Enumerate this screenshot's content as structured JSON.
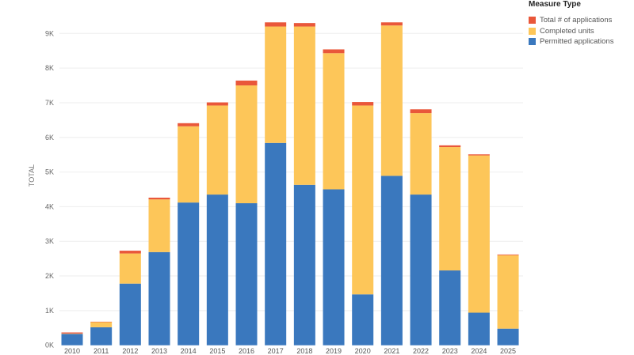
{
  "chart_data": {
    "type": "bar",
    "stacked": true,
    "title": "",
    "xlabel": "",
    "ylabel": "TOTAL",
    "ylim": [
      0,
      9000
    ],
    "yticks": [
      0,
      1000,
      2000,
      3000,
      4000,
      5000,
      6000,
      7000,
      8000,
      9000
    ],
    "ytick_labels": [
      "0K",
      "1K",
      "2K",
      "3K",
      "4K",
      "5K",
      "6K",
      "7K",
      "8K",
      "9K"
    ],
    "grid": true,
    "legend_title": "Measure Type",
    "legend_position": "top-right",
    "categories": [
      "2010",
      "2011",
      "2012",
      "2013",
      "2014",
      "2015",
      "2016",
      "2017",
      "2018",
      "2019",
      "2020",
      "2021",
      "2022",
      "2023",
      "2024",
      "2025"
    ],
    "series": [
      {
        "name": "Permitted applications",
        "color": "#3a78be",
        "values": [
          330,
          520,
          1780,
          2690,
          4120,
          4350,
          4100,
          5840,
          4630,
          4500,
          1470,
          4890,
          4350,
          2160,
          940,
          480
        ]
      },
      {
        "name": "Completed units",
        "color": "#fdc659",
        "values": [
          10,
          155,
          870,
          1520,
          2200,
          2570,
          3400,
          3360,
          4570,
          3930,
          5450,
          4340,
          2350,
          3560,
          4540,
          2120
        ]
      },
      {
        "name": "Total # of applications",
        "color": "#e9573a",
        "values": [
          30,
          5,
          80,
          50,
          90,
          90,
          140,
          120,
          100,
          110,
          100,
          90,
          110,
          50,
          30,
          20
        ]
      }
    ],
    "legend_order": [
      2,
      1,
      0
    ]
  }
}
